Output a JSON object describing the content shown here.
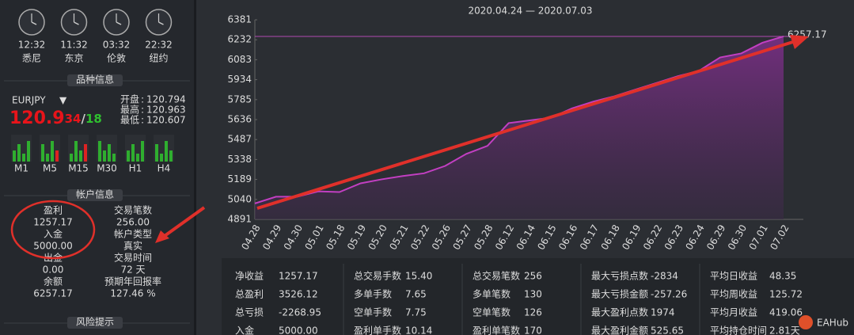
{
  "clocks": [
    {
      "time": "12:32",
      "city": "悉尼"
    },
    {
      "time": "11:32",
      "city": "东京"
    },
    {
      "time": "03:32",
      "city": "伦敦"
    },
    {
      "time": "22:32",
      "city": "纽约"
    }
  ],
  "sections": {
    "symbol": "品种信息",
    "account": "帐户信息",
    "risk": "风险提示"
  },
  "symbol": {
    "name": "EURJPY",
    "price_main": "120.9",
    "price_red": "34",
    "price_sep": "/",
    "price_green": "18",
    "ohlc": [
      {
        "label": "开盘",
        "value": "120.794"
      },
      {
        "label": "最高",
        "value": "120.963"
      },
      {
        "label": "最低",
        "value": "120.607"
      }
    ],
    "timeframes": [
      {
        "label": "M1",
        "color": "#2fbf2f"
      },
      {
        "label": "M5",
        "color": "#9aa0a6"
      },
      {
        "label": "M15",
        "color": "#9aa0a6"
      },
      {
        "label": "M30",
        "color": "#2fbf2f"
      },
      {
        "label": "H1",
        "color": "#2fbf2f"
      },
      {
        "label": "H4",
        "color": "#2fbf2f"
      }
    ]
  },
  "account": {
    "left": [
      {
        "label": "盈利",
        "value": "1257.17"
      },
      {
        "label": "入金",
        "value": "5000.00"
      },
      {
        "label": "出金",
        "value": "0.00"
      },
      {
        "label": "余额",
        "value": "6257.17"
      }
    ],
    "right": [
      {
        "label": "交易笔数",
        "value": "256.00"
      },
      {
        "label": "帐户类型",
        "value": "真实"
      },
      {
        "label": "交易时间",
        "value": "72 天"
      },
      {
        "label": "预期年回报率",
        "value": "127.46 %"
      }
    ]
  },
  "chart_data": {
    "type": "area",
    "title": "2020.04.24 — 2020.07.03",
    "color": "#c23fc2",
    "categories": [
      "04.28",
      "04.29",
      "04.30",
      "05.01",
      "05.18",
      "05.19",
      "05.20",
      "05.21",
      "05.22",
      "05.26",
      "05.27",
      "05.28",
      "06.12",
      "06.14",
      "06.15",
      "06.16",
      "06.17",
      "06.18",
      "06.19",
      "06.22",
      "06.23",
      "06.24",
      "06.29",
      "06.30",
      "07.01",
      "07.02"
    ],
    "values": [
      5010,
      5060,
      5060,
      5100,
      5095,
      5160,
      5190,
      5215,
      5235,
      5290,
      5380,
      5440,
      5610,
      5630,
      5650,
      5720,
      5770,
      5810,
      5860,
      5910,
      5960,
      6000,
      6100,
      6130,
      6210,
      6257.17
    ],
    "ylim": [
      4891,
      6381
    ],
    "yticks": [
      4891,
      5040,
      5189,
      5338,
      5487,
      5636,
      5785,
      5934,
      6083,
      6232,
      6381
    ]
  },
  "stats": [
    [
      [
        "净收益",
        "1257.17"
      ],
      [
        "总交易手数",
        "15.40"
      ],
      [
        "总交易笔数",
        "256"
      ],
      [
        "最大亏损点数",
        "-2834"
      ],
      [
        "平均日收益",
        "48.35"
      ]
    ],
    [
      [
        "总盈利",
        "3526.12"
      ],
      [
        "多单手数",
        "7.65"
      ],
      [
        "多单笔数",
        "130"
      ],
      [
        "最大亏损金额",
        "-257.26"
      ],
      [
        "平均周收益",
        "125.72"
      ]
    ],
    [
      [
        "总亏损",
        "-2268.95"
      ],
      [
        "空单手数",
        "7.75"
      ],
      [
        "空单笔数",
        "126"
      ],
      [
        "最大盈利点数",
        "1974"
      ],
      [
        "平均月收益",
        "419.06"
      ]
    ],
    [
      [
        "入金",
        "5000.00"
      ],
      [
        "盈利单手数",
        "10.14"
      ],
      [
        "盈利单笔数",
        "170"
      ],
      [
        "最大盈利金额",
        "525.65"
      ],
      [
        "平均持仓时间",
        "2.81天"
      ]
    ]
  ],
  "watermark": "EAHub"
}
